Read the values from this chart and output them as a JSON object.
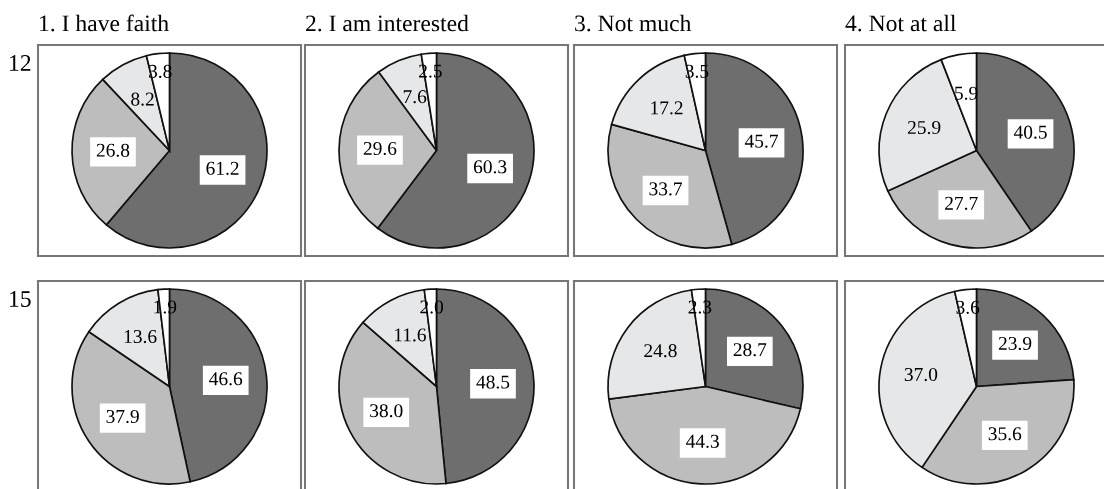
{
  "chart_data": [
    {
      "type": "pie",
      "title": "1. I have faith",
      "ylabel": "12",
      "categories": [
        null,
        null,
        null,
        null
      ],
      "values": [
        61.2,
        26.8,
        8.2,
        3.8
      ],
      "value_labels": [
        "61.2",
        "26.8",
        "8.2",
        "3.8"
      ],
      "colors": [
        "#6e6e6e",
        "#bdbdbd",
        "#e6e7e8",
        "#ffffff"
      ]
    },
    {
      "type": "pie",
      "title": "2. I am interested",
      "categories": [
        null,
        null,
        null,
        null
      ],
      "values": [
        60.3,
        29.6,
        7.6,
        2.5
      ],
      "value_labels": [
        "60.3",
        "29.6",
        "7.6",
        "2.5"
      ],
      "colors": [
        "#6e6e6e",
        "#bdbdbd",
        "#e6e7e8",
        "#ffffff"
      ]
    },
    {
      "type": "pie",
      "title": "3. Not much",
      "categories": [
        null,
        null,
        null,
        null
      ],
      "values": [
        45.7,
        33.7,
        17.2,
        3.5
      ],
      "value_labels": [
        "45.7",
        "33.7",
        "17.2",
        "3.5"
      ],
      "colors": [
        "#6e6e6e",
        "#bdbdbd",
        "#e6e7e8",
        "#ffffff"
      ]
    },
    {
      "type": "pie",
      "title": "4. Not at all",
      "categories": [
        null,
        null,
        null,
        null
      ],
      "values": [
        40.5,
        27.7,
        25.9,
        5.9
      ],
      "value_labels": [
        "40.5",
        "27.7",
        "25.9",
        "5.9"
      ],
      "colors": [
        "#6e6e6e",
        "#bdbdbd",
        "#e6e7e8",
        "#ffffff"
      ]
    },
    {
      "type": "pie",
      "ylabel": "15",
      "categories": [
        null,
        null,
        null,
        null
      ],
      "values": [
        46.6,
        37.9,
        13.6,
        1.9
      ],
      "value_labels": [
        "46.6",
        "37.9",
        "13.6",
        "1.9"
      ],
      "colors": [
        "#6e6e6e",
        "#bdbdbd",
        "#e6e7e8",
        "#ffffff"
      ]
    },
    {
      "type": "pie",
      "categories": [
        null,
        null,
        null,
        null
      ],
      "values": [
        48.5,
        38.0,
        11.6,
        2.0
      ],
      "value_labels": [
        "48.5",
        "38.0",
        "11.6",
        "2.0"
      ],
      "colors": [
        "#6e6e6e",
        "#bdbdbd",
        "#e6e7e8",
        "#ffffff"
      ]
    },
    {
      "type": "pie",
      "categories": [
        null,
        null,
        null,
        null
      ],
      "values": [
        28.7,
        44.3,
        24.8,
        2.3
      ],
      "value_labels": [
        "28.7",
        "44.3",
        "24.8",
        "2.3"
      ],
      "colors": [
        "#6e6e6e",
        "#bdbdbd",
        "#e6e7e8",
        "#ffffff"
      ]
    },
    {
      "type": "pie",
      "categories": [
        null,
        null,
        null,
        null
      ],
      "values": [
        23.9,
        35.6,
        37.0,
        3.6
      ],
      "value_labels": [
        "23.9",
        "35.6",
        "37.0",
        "3.6"
      ],
      "colors": [
        "#6e6e6e",
        "#bdbdbd",
        "#e6e7e8",
        "#ffffff"
      ]
    }
  ]
}
